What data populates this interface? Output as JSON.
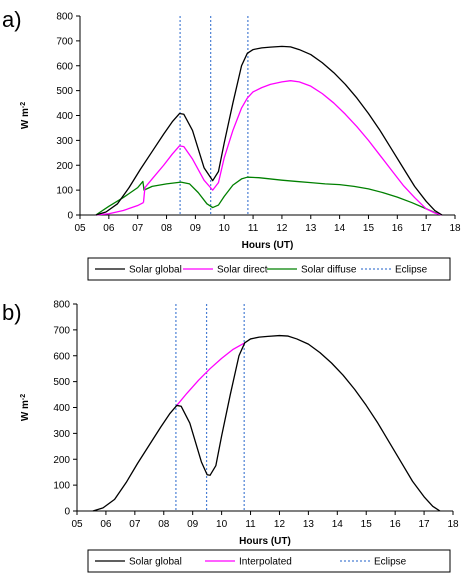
{
  "chart_data": [
    {
      "panel_label": "a)",
      "type": "line",
      "xlabel": "Hours (UT)",
      "ylabel": "W m",
      "ylabel_exponent": "-2",
      "xlim": [
        5,
        18
      ],
      "ylim": [
        0,
        800
      ],
      "xticks": [
        "05",
        "06",
        "07",
        "08",
        "09",
        "10",
        "11",
        "12",
        "13",
        "14",
        "15",
        "16",
        "17",
        "18"
      ],
      "yticks": [
        "0",
        "100",
        "200",
        "300",
        "400",
        "500",
        "600",
        "700",
        "800"
      ],
      "grid": false,
      "legend_position": "bottom",
      "eclipse_lines": [
        8.47,
        9.53,
        10.82
      ],
      "series": [
        {
          "name": "Solar global",
          "color": "#000000",
          "style": "solid",
          "x": [
            5.55,
            5.9,
            6.3,
            6.7,
            7.1,
            7.5,
            7.9,
            8.2,
            8.45,
            8.6,
            8.9,
            9.3,
            9.6,
            9.8,
            10.0,
            10.3,
            10.6,
            10.8,
            11.0,
            11.3,
            11.6,
            12.0,
            12.3,
            12.6,
            13.0,
            13.4,
            13.8,
            14.2,
            14.6,
            15.0,
            15.4,
            15.8,
            16.2,
            16.6,
            17.0,
            17.3,
            17.55
          ],
          "y": [
            0,
            12,
            45,
            110,
            185,
            255,
            325,
            375,
            408,
            405,
            340,
            190,
            138,
            175,
            290,
            450,
            600,
            650,
            665,
            672,
            675,
            678,
            676,
            665,
            645,
            612,
            572,
            525,
            470,
            408,
            340,
            265,
            190,
            115,
            55,
            18,
            0
          ]
        },
        {
          "name": "Solar direct",
          "color": "#ff00ff",
          "style": "solid",
          "x": [
            7.2,
            7.25,
            7.5,
            7.9,
            8.2,
            8.45,
            8.6,
            8.9,
            9.3,
            9.6,
            9.8,
            10.0,
            10.3,
            10.6,
            10.8,
            11.0,
            11.3,
            11.6,
            12.0,
            12.3,
            12.6,
            13.0,
            13.4,
            13.8,
            14.2,
            14.6,
            15.0,
            15.4,
            15.8,
            16.2,
            16.6,
            17.0,
            17.3,
            17.55
          ],
          "y": [
            50,
            110,
            145,
            200,
            245,
            278,
            275,
            225,
            140,
            100,
            130,
            230,
            340,
            430,
            470,
            495,
            512,
            525,
            535,
            540,
            535,
            518,
            488,
            450,
            405,
            355,
            300,
            240,
            180,
            120,
            70,
            25,
            8,
            0
          ],
          "x_left": [
            5.55,
            6.0,
            6.5,
            7.0,
            7.2
          ],
          "y_left": [
            0,
            5,
            18,
            38,
            50
          ]
        },
        {
          "name": "Solar diffuse",
          "color": "#008000",
          "style": "solid",
          "x": [
            5.55,
            6.0,
            6.5,
            7.0,
            7.18,
            7.22,
            7.5,
            8.0,
            8.5,
            8.8,
            9.1,
            9.4,
            9.6,
            9.8,
            10.0,
            10.3,
            10.6,
            10.8,
            11.2,
            11.6,
            12.0,
            12.5,
            13.0,
            13.5,
            14.0,
            14.5,
            15.0,
            15.5,
            16.0,
            16.5,
            17.0,
            17.3,
            17.55
          ],
          "y": [
            0,
            35,
            70,
            110,
            135,
            100,
            115,
            125,
            132,
            125,
            90,
            45,
            30,
            40,
            75,
            120,
            145,
            152,
            150,
            145,
            140,
            135,
            130,
            125,
            122,
            115,
            105,
            90,
            72,
            50,
            25,
            10,
            0
          ]
        },
        {
          "name": "Eclipse",
          "color": "#4a7fd4",
          "style": "dotted"
        }
      ]
    },
    {
      "panel_label": "b)",
      "type": "line",
      "xlabel": "Hours (UT)",
      "ylabel": "W m",
      "ylabel_exponent": "-2",
      "xlim": [
        5,
        18
      ],
      "ylim": [
        0,
        800
      ],
      "xticks": [
        "05",
        "06",
        "07",
        "08",
        "09",
        "10",
        "11",
        "12",
        "13",
        "14",
        "15",
        "16",
        "17",
        "18"
      ],
      "yticks": [
        "0",
        "100",
        "200",
        "300",
        "400",
        "500",
        "600",
        "700",
        "800"
      ],
      "grid": false,
      "legend_position": "bottom",
      "eclipse_lines": [
        8.42,
        9.48,
        10.78
      ],
      "series": [
        {
          "name": "Solar global",
          "color": "#000000",
          "style": "solid",
          "x": [
            5.55,
            5.9,
            6.3,
            6.7,
            7.1,
            7.5,
            7.9,
            8.2,
            8.45,
            8.6,
            8.9,
            9.3,
            9.5,
            9.6,
            9.8,
            10.0,
            10.3,
            10.6,
            10.8,
            11.0,
            11.3,
            11.6,
            12.0,
            12.3,
            12.6,
            13.0,
            13.4,
            13.8,
            14.2,
            14.6,
            15.0,
            15.4,
            15.8,
            16.2,
            16.6,
            17.0,
            17.3,
            17.55
          ],
          "y": [
            0,
            12,
            45,
            110,
            185,
            255,
            325,
            375,
            408,
            405,
            340,
            190,
            140,
            138,
            175,
            290,
            450,
            600,
            650,
            665,
            672,
            675,
            678,
            676,
            665,
            645,
            612,
            572,
            525,
            470,
            408,
            340,
            265,
            190,
            115,
            55,
            18,
            0
          ]
        },
        {
          "name": "Interpolated",
          "color": "#ff00ff",
          "style": "solid",
          "x": [
            8.45,
            8.8,
            9.2,
            9.6,
            10.0,
            10.4,
            10.8
          ],
          "y": [
            408,
            455,
            505,
            550,
            590,
            625,
            650
          ]
        },
        {
          "name": "Eclipse",
          "color": "#4a7fd4",
          "style": "dotted"
        }
      ]
    }
  ]
}
